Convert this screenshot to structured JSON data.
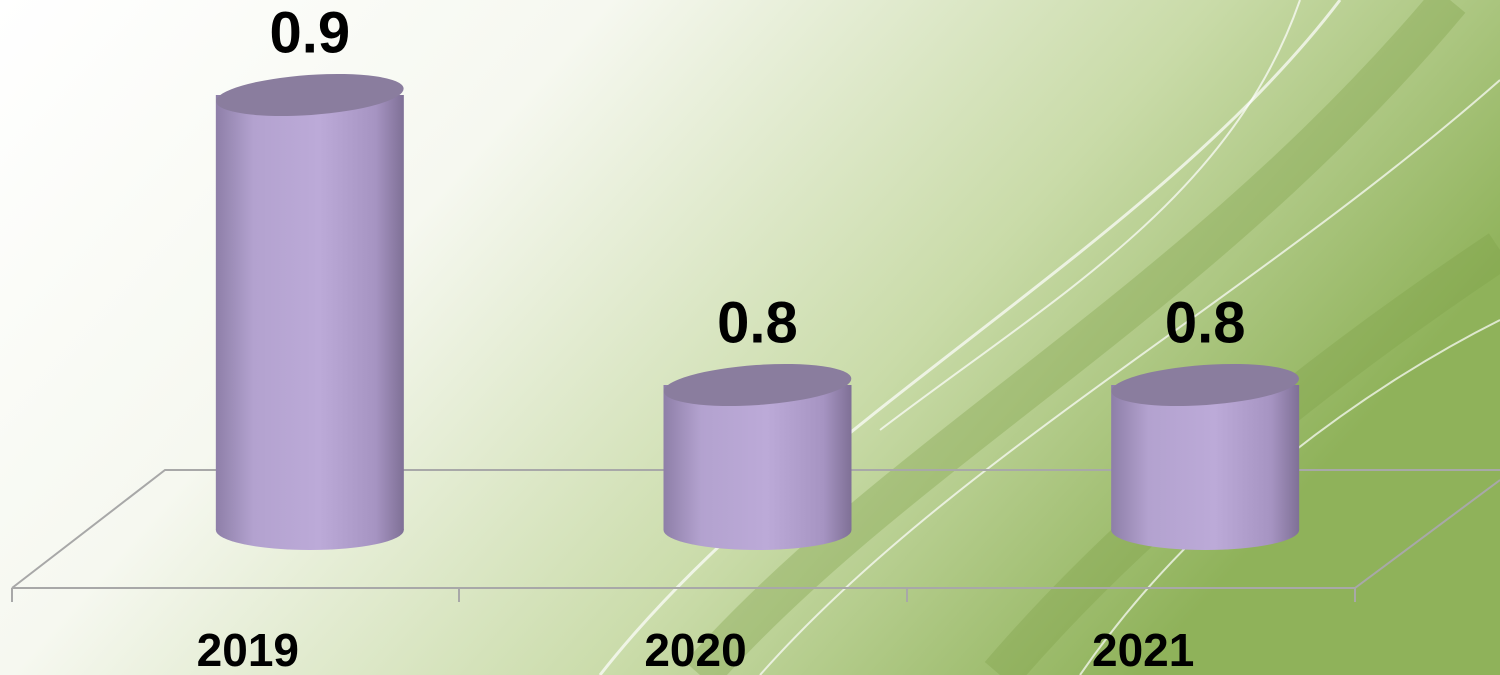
{
  "chart_data": {
    "type": "cylinder-bar",
    "categories": [
      "2019",
      "2020",
      "2021"
    ],
    "values": [
      0.9,
      0.8,
      0.8
    ],
    "color": "#bba8d6",
    "ylim": [
      0.75,
      0.9
    ]
  }
}
